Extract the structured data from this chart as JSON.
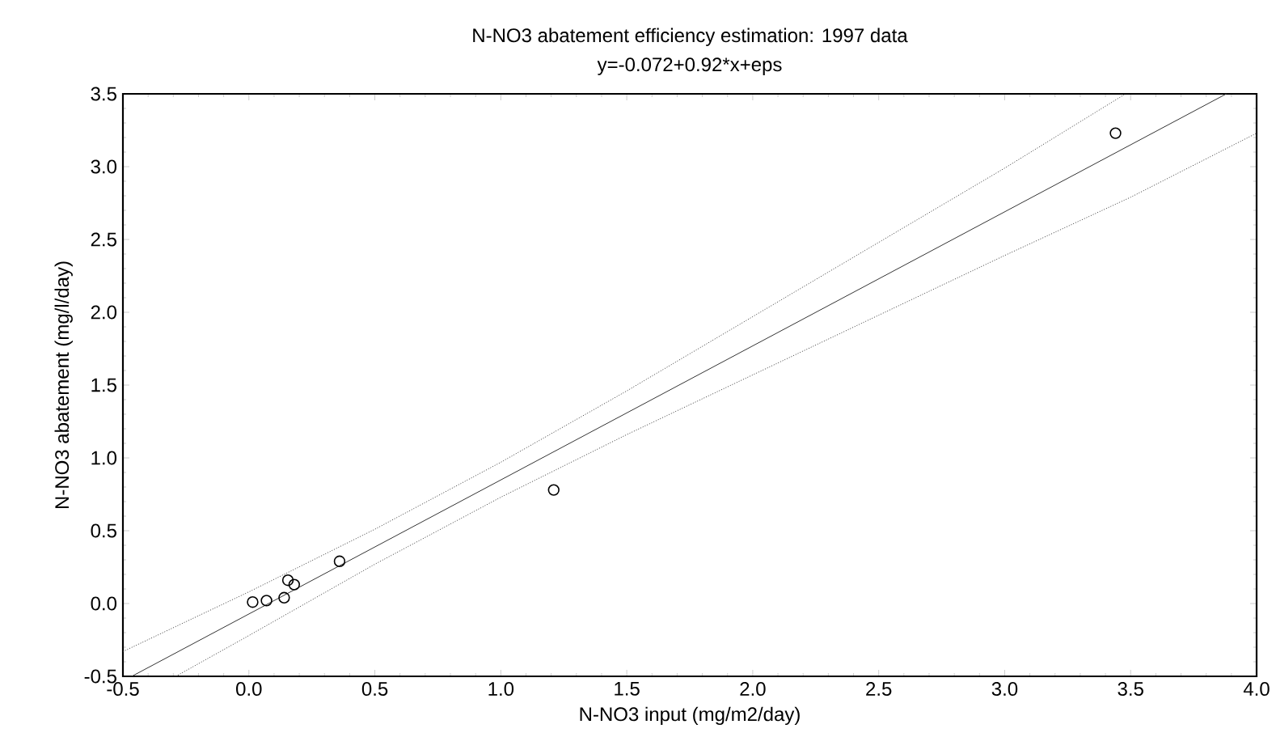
{
  "chart_data": {
    "type": "scatter",
    "title": "N-NO3 abatement efficiency estimation: 1997 data",
    "subtitle": "y=-0.072+0.92*x+eps",
    "xlabel": "N-NO3 input (mg/m2/day)",
    "ylabel": "N-NO3 abatement (mg/l/day)",
    "xlim": [
      -0.5,
      4.0
    ],
    "ylim": [
      -0.5,
      3.5
    ],
    "xticks": [
      {
        "value": -0.5,
        "label": "-0.5"
      },
      {
        "value": 0,
        "label": "0.0"
      },
      {
        "value": 0.5,
        "label": "0.5"
      },
      {
        "value": 1,
        "label": "1.0"
      },
      {
        "value": 1.5,
        "label": "1.5"
      },
      {
        "value": 2,
        "label": "2.0"
      },
      {
        "value": 2.5,
        "label": "2.5"
      },
      {
        "value": 3,
        "label": "3.0"
      },
      {
        "value": 3.5,
        "label": "3.5"
      },
      {
        "value": 4,
        "label": "4.0"
      }
    ],
    "yticks": [
      {
        "value": -0.5,
        "label": "-0.5"
      },
      {
        "value": 0,
        "label": "0.0"
      },
      {
        "value": 0.5,
        "label": "0.5"
      },
      {
        "value": 1,
        "label": "1.0"
      },
      {
        "value": 1.5,
        "label": "1.5"
      },
      {
        "value": 2,
        "label": "2.0"
      },
      {
        "value": 2.5,
        "label": "2.5"
      },
      {
        "value": 3,
        "label": "3.0"
      },
      {
        "value": 3.5,
        "label": "3.5"
      }
    ],
    "grid": false,
    "legend": false,
    "series": [
      {
        "marker": "circle",
        "color": "#000000",
        "x": [
          0.015,
          0.07,
          0.14,
          0.155,
          0.18,
          0.36,
          1.21,
          3.44
        ],
        "values": [
          0.01,
          0.02,
          0.04,
          0.16,
          0.13,
          0.29,
          0.78,
          3.23
        ]
      },
      {
        "type": "line",
        "marker": "none",
        "line_style": "solid",
        "color": "#333333",
        "x": [
          -0.465,
          3.88
        ],
        "values": [
          -0.5,
          3.5
        ]
      },
      {
        "type": "line",
        "marker": "none",
        "line_style": "dotted",
        "color": "#333333",
        "x": [
          -0.5,
          0,
          0.5,
          1,
          1.5,
          2,
          2.5,
          3,
          3.48
        ],
        "values": [
          -0.33,
          0.08,
          0.51,
          0.97,
          1.46,
          1.97,
          2.48,
          2.99,
          3.5
        ]
      },
      {
        "type": "line",
        "marker": "none",
        "line_style": "dotted",
        "color": "#333333",
        "x": [
          -0.29,
          0,
          0.5,
          1,
          1.5,
          2,
          2.5,
          3,
          3.5,
          4
        ],
        "values": [
          -0.5,
          -0.22,
          0.27,
          0.73,
          1.16,
          1.57,
          1.98,
          2.39,
          2.79,
          3.23
        ]
      }
    ]
  }
}
